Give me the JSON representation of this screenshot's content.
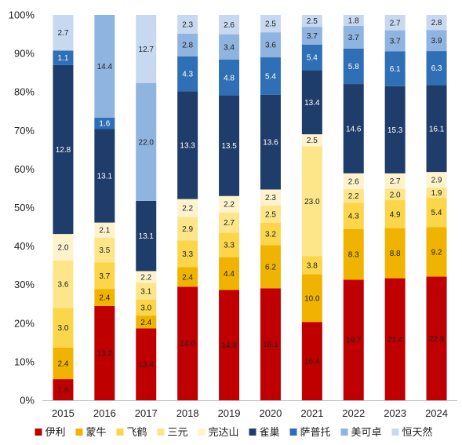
{
  "chart_data": {
    "type": "bar",
    "stacked": true,
    "normalized": true,
    "categories": [
      "2015",
      "2016",
      "2017",
      "2018",
      "2019",
      "2020",
      "2021",
      "2022",
      "2023",
      "2024"
    ],
    "ylim": [
      0,
      100
    ],
    "y_ticks": [
      "0%",
      "10%",
      "20%",
      "30%",
      "40%",
      "50%",
      "60%",
      "70%",
      "80%",
      "90%",
      "100%"
    ],
    "grid": false,
    "legend_position": "bottom",
    "series": [
      {
        "name": "伊利",
        "color": "#c00000",
        "label_color": "#222222",
        "values": [
          1.6,
          13.2,
          13.4,
          14.0,
          14.8,
          16.1,
          16.4,
          19.7,
          21.4,
          22.9
        ]
      },
      {
        "name": "蒙牛",
        "color": "#f0b400",
        "label_color": "#222222",
        "values": [
          2.4,
          2.4,
          2.4,
          2.4,
          4.4,
          6.2,
          10.0,
          8.3,
          8.8,
          9.2
        ]
      },
      {
        "name": "飞鹤",
        "color": "#fbd54a",
        "label_color": "#222222",
        "values": [
          3.0,
          3.7,
          3.0,
          3.3,
          3.3,
          3.2,
          3.8,
          4.3,
          4.9,
          5.4
        ]
      },
      {
        "name": "三元",
        "color": "#fde58a",
        "label_color": "#222222",
        "values": [
          3.6,
          3.5,
          3.1,
          2.9,
          2.7,
          2.5,
          23.0,
          2.2,
          2.0,
          1.9
        ]
      },
      {
        "name": "完达山",
        "color": "#fef3cc",
        "label_color": "#222222",
        "values": [
          2.0,
          2.1,
          2.2,
          2.2,
          2.2,
          2.3,
          2.5,
          2.6,
          2.7,
          2.9
        ]
      },
      {
        "name": "雀巢",
        "color": "#1f3d6b",
        "label_color": "#ffffff",
        "values": [
          12.8,
          13.1,
          13.1,
          13.3,
          13.5,
          13.6,
          13.4,
          14.6,
          15.3,
          16.1
        ]
      },
      {
        "name": "萨普托",
        "color": "#2e6fb5",
        "label_color": "#ffffff",
        "values": [
          1.1,
          1.6,
          0,
          4.3,
          4.8,
          5.4,
          5.4,
          5.8,
          6.1,
          6.3
        ]
      },
      {
        "name": "美可卓",
        "color": "#8fb4e0",
        "label_color": "#222222",
        "values": [
          0,
          14.4,
          22.0,
          2.8,
          3.4,
          3.6,
          3.7,
          3.7,
          3.7,
          3.9
        ]
      },
      {
        "name": "恒天然",
        "color": "#c7d9f0",
        "label_color": "#222222",
        "values": [
          2.7,
          0,
          12.7,
          2.3,
          2.6,
          2.5,
          2.5,
          1.8,
          2.7,
          2.8
        ]
      }
    ]
  }
}
